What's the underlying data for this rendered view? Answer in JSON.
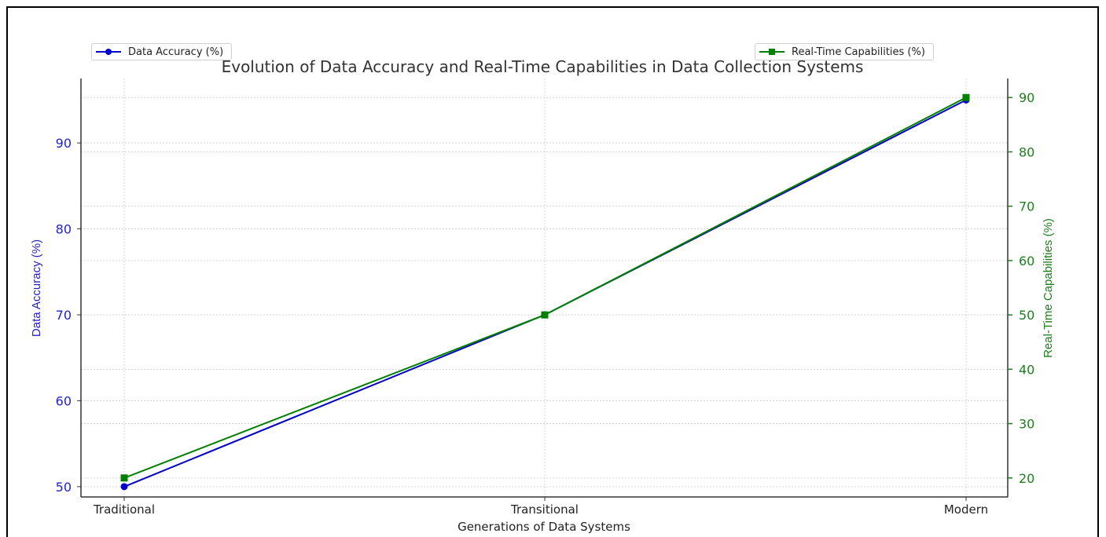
{
  "chart_data": {
    "type": "line",
    "title": "Evolution of Data Accuracy and Real-Time Capabilities in Data Collection Systems",
    "xlabel": "Generations of Data Systems",
    "categories": [
      "Traditional",
      "Transitional",
      "Modern"
    ],
    "y_left": {
      "label": "Data Accuracy (%)",
      "ticks": [
        50,
        60,
        70,
        80,
        90
      ],
      "range": [
        48.8,
        97.5
      ],
      "color": "#2323c8"
    },
    "y_right": {
      "label": "Real-Time Capabilities (%)",
      "ticks": [
        20,
        30,
        40,
        50,
        60,
        70,
        80,
        90
      ],
      "range": [
        16.5,
        93.5
      ],
      "color": "#1e7d1e"
    },
    "series": [
      {
        "name": "Data Accuracy (%)",
        "axis": "left",
        "values": [
          50,
          70,
          95
        ],
        "color": "#0000cc",
        "marker": "circle"
      },
      {
        "name": "Real-Time Capabilities (%)",
        "axis": "right",
        "values": [
          20,
          50,
          90
        ],
        "color": "#008000",
        "marker": "square"
      }
    ],
    "grid": true,
    "legend": [
      "top-left",
      "top-right"
    ]
  }
}
